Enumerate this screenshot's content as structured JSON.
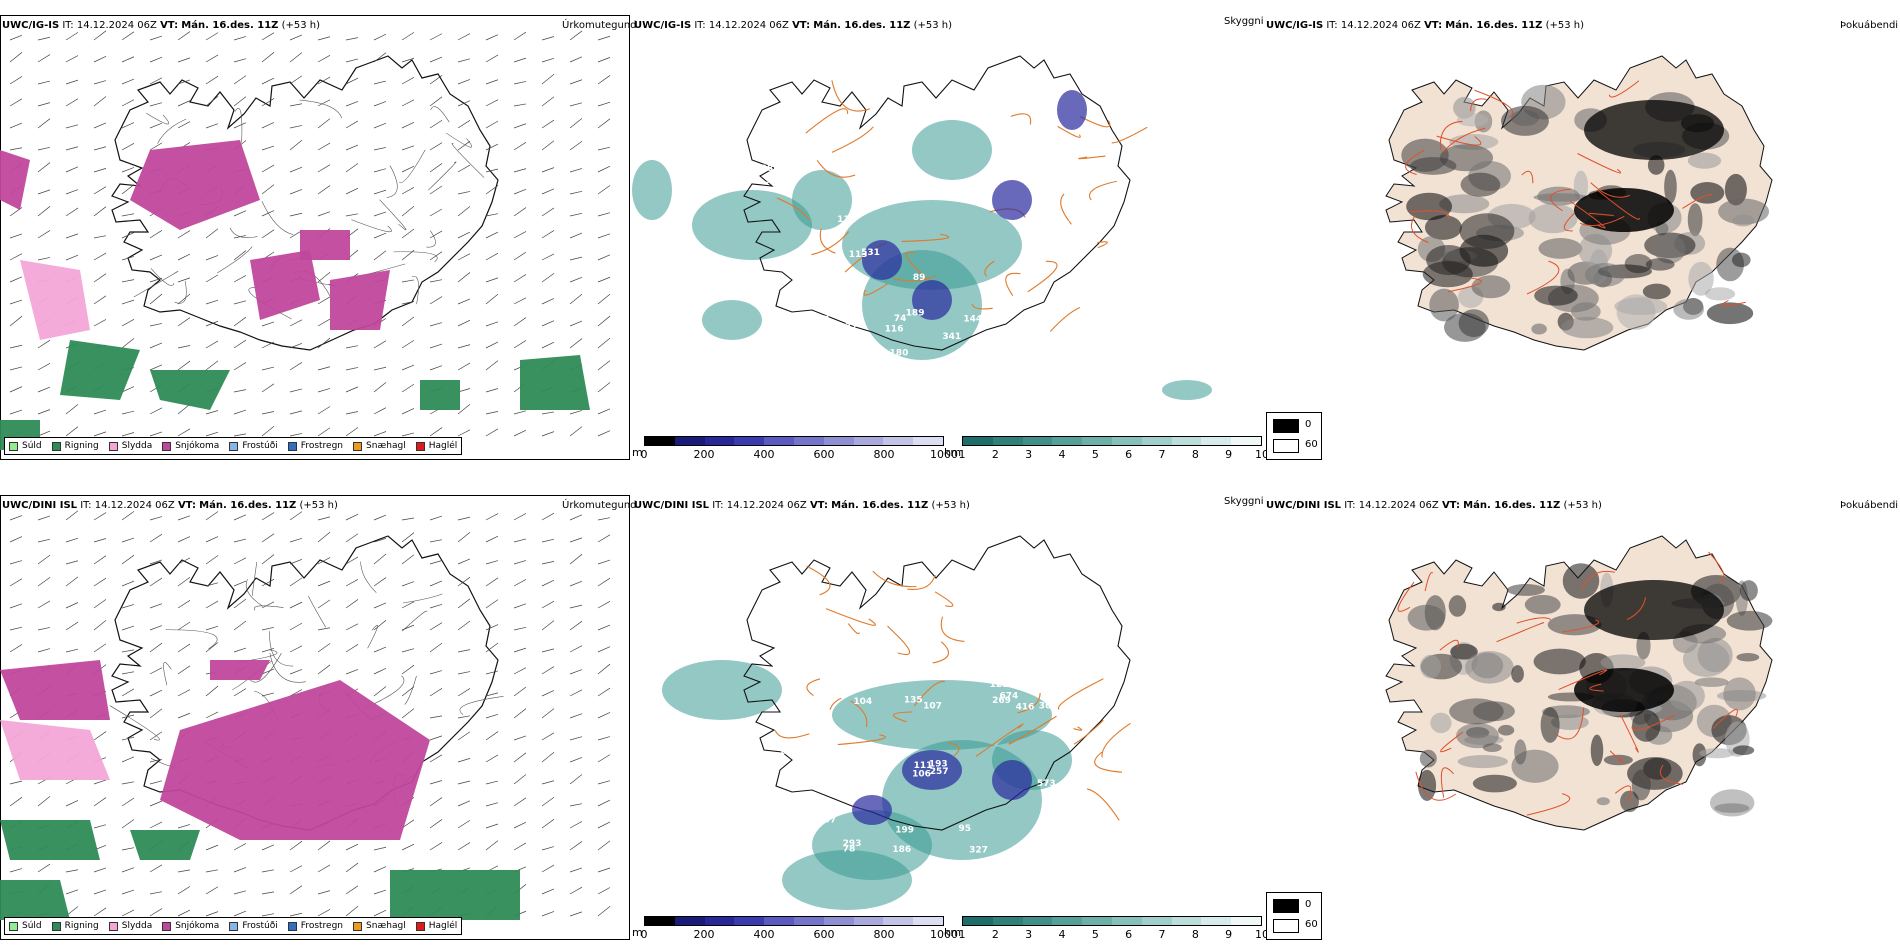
{
  "rows": [
    {
      "model": "UWC/IG-IS",
      "it_label": "IT:",
      "it_value": "14.12.2024 06Z",
      "vt_label": "VT:",
      "vt_value": "Mán. 16.des. 11Z",
      "lead": "(+53 h)",
      "vis_labels": [
        "964",
        "286",
        "276",
        "107",
        "143",
        "341",
        "365",
        "832",
        "70",
        "144",
        "205",
        "89",
        "82",
        "160",
        "74",
        "113",
        "116",
        "204",
        "111",
        "531",
        "130",
        "180",
        "195",
        "105",
        "102",
        "189",
        "54",
        "103",
        "96",
        "123"
      ]
    },
    {
      "model": "UWC/DINI ISL",
      "it_label": "IT:",
      "it_value": "14.12.2024 06Z",
      "vt_label": "VT:",
      "vt_value": "Mán. 16.des. 11Z",
      "lead": "(+53 h)",
      "vis_labels": [
        "293",
        "674",
        "573",
        "186",
        "269",
        "407",
        "365",
        "130",
        "199",
        "416",
        "327",
        "140",
        "107",
        "104",
        "293",
        "397",
        "570",
        "106",
        "257",
        "111",
        "102",
        "193",
        "121",
        "78",
        "95",
        "56",
        "135"
      ]
    }
  ],
  "panel_titles": {
    "precip": "Úrkomutegund",
    "visibility": "Skyggni",
    "fog": "Þokuábendi"
  },
  "precip_legend": [
    {
      "label": "Súld",
      "color": "#90ee90"
    },
    {
      "label": "Rigning",
      "color": "#2e8b57"
    },
    {
      "label": "Slydda",
      "color": "#f4a6d7"
    },
    {
      "label": "Snjókoma",
      "color": "#c0479c"
    },
    {
      "label": "Frostúði",
      "color": "#87b5e8"
    },
    {
      "label": "Frostregn",
      "color": "#2f6fc4"
    },
    {
      "label": "Snæhagl",
      "color": "#ef9a1e"
    },
    {
      "label": "Haglél",
      "color": "#e01a1a"
    }
  ],
  "cbar_m": {
    "unit": "m",
    "ticks": [
      "0",
      "200",
      "400",
      "600",
      "800",
      "1000"
    ],
    "colors": [
      "#000000",
      "#1a1a7a",
      "#27279a",
      "#3b3bb0",
      "#5a5ac0",
      "#7474c8",
      "#8f8fd3",
      "#a9a9de",
      "#c3c3e8",
      "#dcdcf2"
    ]
  },
  "cbar_km": {
    "unit": "km",
    "ticks": [
      "1",
      "2",
      "3",
      "4",
      "5",
      "6",
      "7",
      "8",
      "9",
      "10"
    ],
    "colors": [
      "#1d6e6a",
      "#2f7f7a",
      "#428f8a",
      "#56a09a",
      "#6db0aa",
      "#86c0bb",
      "#a0cfcb",
      "#bbdedb",
      "#d6ecea",
      "#f0f8f7"
    ]
  },
  "fog_legend": [
    {
      "label": "0",
      "color": "#000000"
    },
    {
      "label": "60",
      "color": "#ffffff"
    }
  ]
}
